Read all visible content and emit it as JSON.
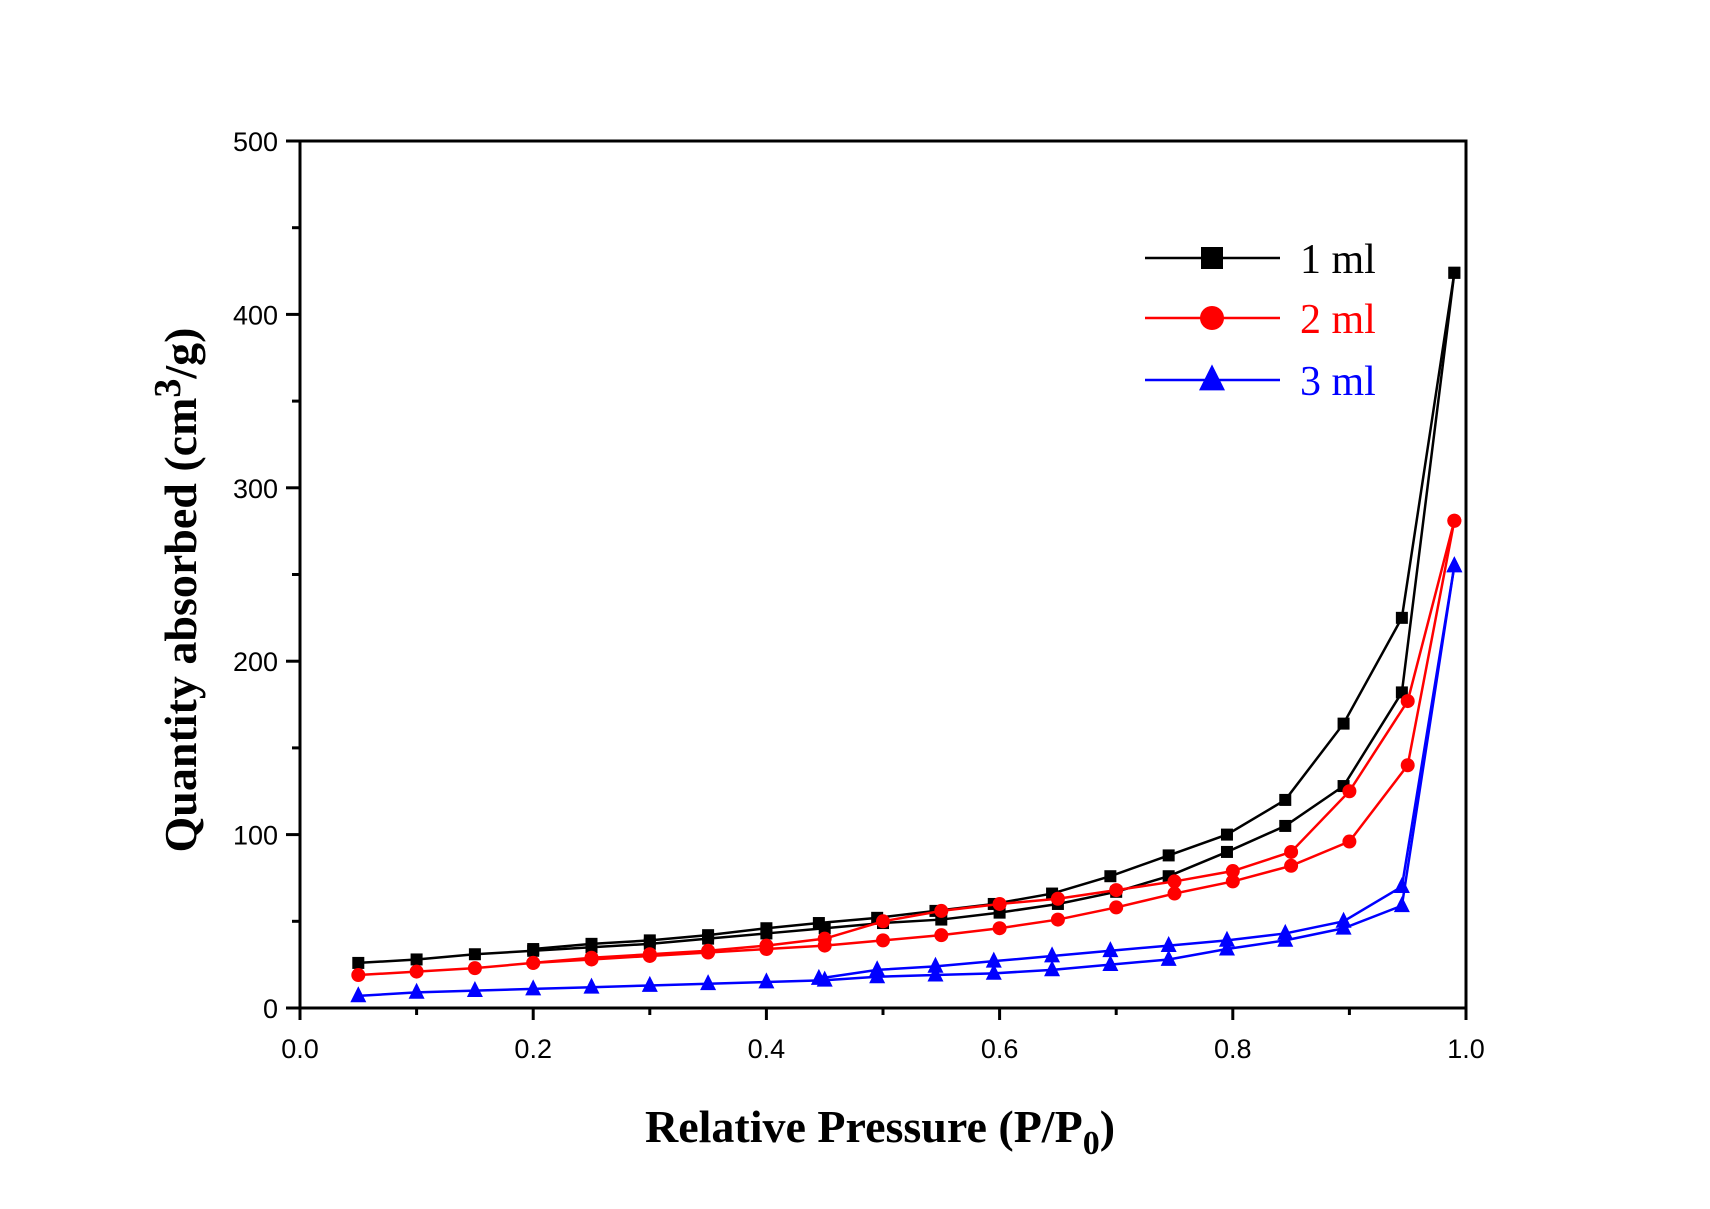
{
  "chart_data": {
    "type": "line",
    "title": "",
    "xlabel": "Relative Pressure  (P/P",
    "xlabel_sub": "0",
    "xlabel_close": ")",
    "ylabel": "Quantity absorbed (cm",
    "ylabel_sup": "3",
    "ylabel_close": "/g)",
    "xlim": [
      0.0,
      1.0
    ],
    "ylim": [
      0,
      500
    ],
    "xticks": [
      "0.0",
      "0.2",
      "0.4",
      "0.6",
      "0.8",
      "1.0"
    ],
    "xtick_values": [
      0.0,
      0.2,
      0.4,
      0.6,
      0.8,
      1.0
    ],
    "yticks": [
      "0",
      "100",
      "200",
      "300",
      "400",
      "500"
    ],
    "ytick_values": [
      0,
      100,
      200,
      300,
      400,
      500
    ],
    "grid": false,
    "legend_position": "top-right",
    "series": [
      {
        "name": "1 ml",
        "color": "#000000",
        "marker": "square",
        "adsorption": {
          "x": [
            0.05,
            0.1,
            0.15,
            0.2,
            0.25,
            0.3,
            0.35,
            0.4,
            0.45,
            0.5,
            0.55,
            0.6,
            0.65,
            0.7,
            0.745,
            0.795,
            0.845,
            0.895,
            0.945,
            0.99
          ],
          "y": [
            26,
            28,
            31,
            33,
            35,
            37,
            40,
            43,
            46,
            49,
            51,
            55,
            60,
            67,
            76,
            90,
            105,
            128,
            182,
            424
          ]
        },
        "desorption": {
          "x": [
            0.99,
            0.945,
            0.895,
            0.845,
            0.795,
            0.745,
            0.695,
            0.645,
            0.595,
            0.545,
            0.495,
            0.445,
            0.4,
            0.35,
            0.3,
            0.25,
            0.2
          ],
          "y": [
            424,
            225,
            164,
            120,
            100,
            88,
            76,
            66,
            60,
            56,
            52,
            49,
            46,
            42,
            39,
            37,
            34
          ]
        }
      },
      {
        "name": "2 ml",
        "color": "#ff0000",
        "marker": "circle",
        "adsorption": {
          "x": [
            0.05,
            0.1,
            0.15,
            0.2,
            0.25,
            0.3,
            0.35,
            0.4,
            0.45,
            0.5,
            0.55,
            0.6,
            0.65,
            0.7,
            0.75,
            0.8,
            0.85,
            0.9,
            0.95,
            0.99
          ],
          "y": [
            19,
            21,
            23,
            26,
            28,
            30,
            32,
            34,
            36,
            39,
            42,
            46,
            51,
            58,
            66,
            73,
            82,
            96,
            140,
            281
          ]
        },
        "desorption": {
          "x": [
            0.99,
            0.95,
            0.9,
            0.85,
            0.8,
            0.75,
            0.7,
            0.65,
            0.6,
            0.55,
            0.5,
            0.45,
            0.4,
            0.35,
            0.3,
            0.25,
            0.2
          ],
          "y": [
            281,
            177,
            125,
            90,
            79,
            73,
            68,
            63,
            60,
            56,
            50,
            40,
            36,
            33,
            31,
            29,
            26
          ]
        }
      },
      {
        "name": "3 ml",
        "color": "#0000ff",
        "marker": "triangle",
        "adsorption": {
          "x": [
            0.05,
            0.1,
            0.15,
            0.2,
            0.25,
            0.3,
            0.35,
            0.4,
            0.45,
            0.495,
            0.545,
            0.595,
            0.645,
            0.695,
            0.745,
            0.795,
            0.845,
            0.895,
            0.945,
            0.99
          ],
          "y": [
            7,
            9,
            10,
            11,
            12,
            13,
            14,
            15,
            16,
            18,
            19,
            20,
            22,
            25,
            28,
            34,
            39,
            46,
            59,
            255
          ]
        },
        "desorption": {
          "x": [
            0.99,
            0.945,
            0.895,
            0.845,
            0.795,
            0.745,
            0.695,
            0.645,
            0.595,
            0.545,
            0.495,
            0.445
          ],
          "y": [
            255,
            70,
            50,
            43,
            39,
            36,
            33,
            30,
            27,
            24,
            22,
            17
          ]
        }
      }
    ]
  }
}
